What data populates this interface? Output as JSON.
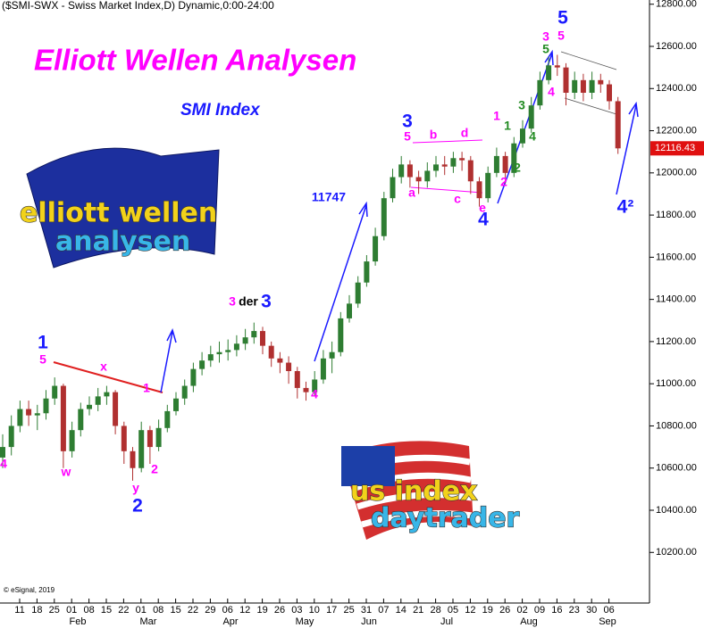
{
  "chart_data": {
    "type": "candlestick",
    "header": "($SMI-SWX - Swiss Market Index,D) Dynamic,0:00-24:00",
    "title": "Elliott Wellen Analysen",
    "subtitle": "SMI Index",
    "credit": "© eSignal, 2019",
    "up_color": "#2e7d32",
    "down_color": "#b03030",
    "title_color": "#ff00ff",
    "subtitle_color": "#1a1aff",
    "ylim": [
      9960,
      12820
    ],
    "yticks": [
      {
        "value": 10200,
        "label": "10200.00"
      },
      {
        "value": 10400,
        "label": "10400.00"
      },
      {
        "value": 10600,
        "label": "10600.00"
      },
      {
        "value": 10800,
        "label": "10800.00"
      },
      {
        "value": 11000,
        "label": "11000.00"
      },
      {
        "value": 11200,
        "label": "11200.00"
      },
      {
        "value": 11400,
        "label": "11400.00"
      },
      {
        "value": 11600,
        "label": "11600.00"
      },
      {
        "value": 11800,
        "label": "11800.00"
      },
      {
        "value": 12000,
        "label": "12000.00"
      },
      {
        "value": 12200,
        "label": "12200.00"
      },
      {
        "value": 12400,
        "label": "12400.00"
      },
      {
        "value": 12600,
        "label": "12600.00"
      },
      {
        "value": 12800,
        "label": "12800.00"
      }
    ],
    "categories": [
      "11",
      "18",
      "25",
      "01",
      "08",
      "15",
      "22",
      "01",
      "08",
      "15",
      "22",
      "29",
      "06",
      "12",
      "19",
      "26",
      "03",
      "10",
      "17",
      "25",
      "31",
      "07",
      "14",
      "21",
      "28",
      "05",
      "12",
      "19",
      "26",
      "02",
      "09",
      "16",
      "23",
      "30",
      "06"
    ],
    "months": [
      "Feb",
      "Mar",
      "Apr",
      "May",
      "Jun",
      "Jul",
      "Aug",
      "Sep"
    ],
    "open": [
      10650,
      10700,
      10800,
      10880,
      10850,
      10860,
      10930,
      10990,
      10680,
      10780,
      10880,
      10900,
      10940,
      10960,
      10800,
      10680,
      10600,
      10780,
      10700,
      10790,
      10870,
      10930,
      10990,
      11070,
      11110,
      11140,
      11150,
      11160,
      11190,
      11220,
      11250,
      11180,
      11120,
      11100,
      11060,
      10980,
      10960,
      11020,
      11120,
      11150,
      11310,
      11380,
      11480,
      11580,
      11700,
      11880,
      11980,
      12040,
      11980,
      11960,
      12010,
      12040,
      12030,
      12070,
      12060,
      11960,
      11880,
      12000,
      12080,
      12000,
      12140,
      12210,
      12320,
      12440,
      12510,
      12500,
      12380,
      12440,
      12380,
      12440,
      12420,
      12340
    ],
    "high": [
      10760,
      10850,
      10920,
      10920,
      10900,
      10970,
      11030,
      11000,
      10820,
      10910,
      10940,
      10980,
      10990,
      10970,
      10820,
      10700,
      10820,
      10800,
      10830,
      10900,
      10960,
      11020,
      11100,
      11150,
      11180,
      11200,
      11210,
      11230,
      11260,
      11290,
      11270,
      11200,
      11150,
      11130,
      11080,
      11010,
      11060,
      11160,
      11200,
      11340,
      11420,
      11510,
      11610,
      11740,
      11910,
      12020,
      12080,
      12060,
      12010,
      12050,
      12080,
      12080,
      12100,
      12100,
      12080,
      11980,
      12030,
      12120,
      12100,
      12170,
      12250,
      12360,
      12480,
      12550,
      12560,
      12520,
      12480,
      12470,
      12480,
      12470,
      12440,
      12360
    ],
    "low": [
      10600,
      10660,
      10770,
      10800,
      10780,
      10830,
      10900,
      10600,
      10650,
      10750,
      10850,
      10870,
      10900,
      10760,
      10620,
      10540,
      10580,
      10620,
      10680,
      10770,
      10850,
      10900,
      10960,
      11040,
      11080,
      11100,
      11110,
      11130,
      11160,
      11190,
      11140,
      11080,
      11050,
      11000,
      10930,
      10920,
      10940,
      11000,
      11050,
      11130,
      11290,
      11360,
      11460,
      11560,
      11680,
      11860,
      11950,
      11930,
      11900,
      11930,
      11980,
      11990,
      12000,
      12010,
      11900,
      11840,
      11860,
      11980,
      11950,
      11980,
      12120,
      12190,
      12300,
      12420,
      12460,
      12320,
      12350,
      12340,
      12350,
      12380,
      12300,
      12090
    ],
    "close": [
      10700,
      10800,
      10880,
      10850,
      10860,
      10930,
      10990,
      10680,
      10780,
      10880,
      10900,
      10940,
      10960,
      10800,
      10680,
      10600,
      10780,
      10700,
      10790,
      10870,
      10930,
      10990,
      11070,
      11110,
      11140,
      11150,
      11160,
      11190,
      11220,
      11250,
      11180,
      11120,
      11100,
      11060,
      10980,
      10960,
      11020,
      11120,
      11150,
      11310,
      11380,
      11480,
      11580,
      11700,
      11880,
      11980,
      12040,
      11980,
      11960,
      12010,
      12040,
      12030,
      12070,
      12060,
      11960,
      11880,
      12000,
      12080,
      12000,
      12140,
      12210,
      12320,
      12440,
      12510,
      12500,
      12380,
      12440,
      12380,
      12440,
      12420,
      12340,
      12116.43
    ],
    "annotations": [
      {
        "text": "1",
        "color": "#1a1aff"
      },
      {
        "text": "5",
        "color": "#ff00ff"
      },
      {
        "text": "x",
        "color": "#ff00ff"
      },
      {
        "text": "1",
        "color": "#ff00ff"
      },
      {
        "text": "w",
        "color": "#ff00ff"
      },
      {
        "text": "y",
        "color": "#ff00ff"
      },
      {
        "text": "2",
        "color": "#1a1aff"
      },
      {
        "text": "2",
        "color": "#ff00ff"
      },
      {
        "text": "4",
        "color": "#ff00ff"
      },
      {
        "text": "3",
        "color": "#ff00ff"
      },
      {
        "text": "der",
        "color": "#000000"
      },
      {
        "text": "3",
        "color": "#1a1aff"
      },
      {
        "text": "4",
        "color": "#ff00ff"
      },
      {
        "text": "11747",
        "color": "#1a1aff"
      },
      {
        "text": "3",
        "color": "#1a1aff"
      },
      {
        "text": "5",
        "color": "#ff00ff"
      },
      {
        "text": "b",
        "color": "#ff00ff"
      },
      {
        "text": "d",
        "color": "#ff00ff"
      },
      {
        "text": "a",
        "color": "#ff00ff"
      },
      {
        "text": "c",
        "color": "#ff00ff"
      },
      {
        "text": "e",
        "color": "#ff00ff"
      },
      {
        "text": "4",
        "color": "#1a1aff"
      },
      {
        "text": "1",
        "color": "#ff00ff"
      },
      {
        "text": "2",
        "color": "#ff00ff"
      },
      {
        "text": "1",
        "color": "#228b22"
      },
      {
        "text": "2",
        "color": "#228b22"
      },
      {
        "text": "3",
        "color": "#228b22"
      },
      {
        "text": "4",
        "color": "#228b22"
      },
      {
        "text": "5",
        "color": "#228b22"
      },
      {
        "text": "3",
        "color": "#ff00ff"
      },
      {
        "text": "4",
        "color": "#ff00ff"
      },
      {
        "text": "5",
        "color": "#ff00ff"
      },
      {
        "text": "5",
        "color": "#1a1aff"
      },
      {
        "text": "4²",
        "color": "#1a1aff"
      }
    ],
    "logos": [
      {
        "line1": "elliott wellen",
        "line2": "analysen"
      },
      {
        "line1": "us index",
        "line2": "daytrader"
      }
    ]
  }
}
